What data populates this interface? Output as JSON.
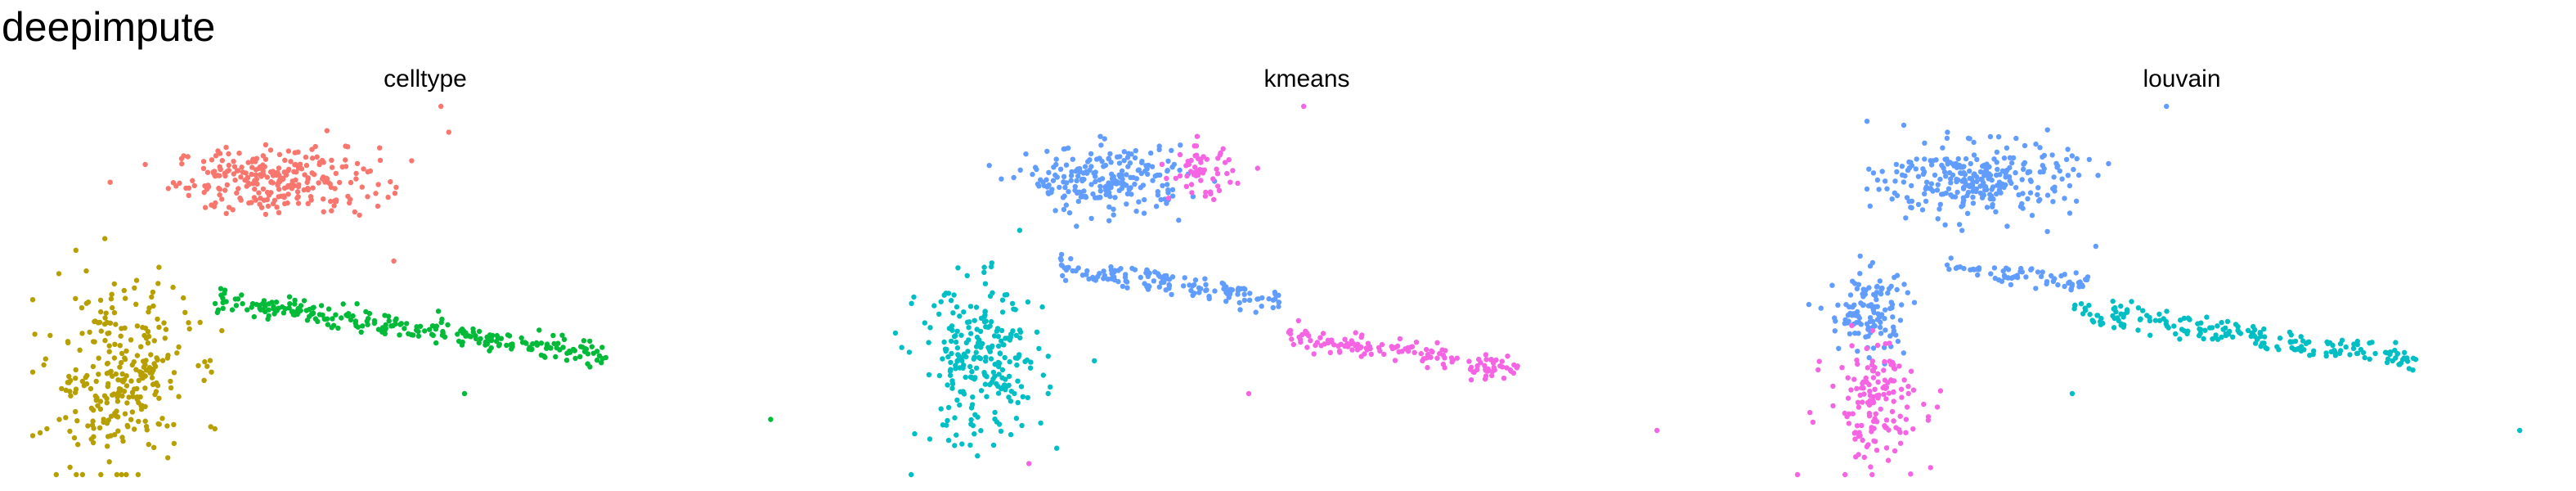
{
  "figure": {
    "title": "deepimpute"
  },
  "colors": {
    "salmon": "#F8766D",
    "olive": "#B79F00",
    "green": "#00BA38",
    "blue": "#619CFF",
    "cyan": "#00BFC4",
    "magenta": "#F564E3"
  },
  "chart_data": [
    {
      "type": "scatter",
      "title": "celltype",
      "xlabel": "",
      "ylabel": "",
      "grid": false,
      "legend": "none",
      "clusters": [
        {
          "cx": 0.31,
          "cy": 0.8,
          "rx": 0.13,
          "ry": 0.09,
          "n": 260,
          "color": "#F8766D"
        },
        {
          "cx": 0.11,
          "cy": 0.27,
          "rx": 0.09,
          "ry": 0.25,
          "n": 280,
          "color": "#B79F00"
        },
        {
          "cx": 0.48,
          "cy": 0.4,
          "rx": 0.25,
          "ry": 0.035,
          "slope": -0.6,
          "n": 260,
          "color": "#00BA38"
        }
      ],
      "outliers": [
        {
          "x": 0.52,
          "y": 1.0,
          "color": "#F8766D"
        },
        {
          "x": 0.53,
          "y": 0.93,
          "color": "#F8766D"
        },
        {
          "x": 0.46,
          "y": 0.58,
          "color": "#F8766D"
        },
        {
          "x": 0.94,
          "y": 0.15,
          "color": "#00BA38"
        },
        {
          "x": 0.55,
          "y": 0.22,
          "color": "#00BA38"
        },
        {
          "x": 0.03,
          "y": 0.0,
          "color": "#B79F00"
        }
      ]
    },
    {
      "type": "scatter",
      "title": "kmeans",
      "xlabel": "",
      "ylabel": "",
      "grid": false,
      "legend": "none",
      "clusters": [
        {
          "cx": 0.27,
          "cy": 0.8,
          "rx": 0.1,
          "ry": 0.09,
          "n": 220,
          "color": "#619CFF"
        },
        {
          "cx": 0.39,
          "cy": 0.82,
          "rx": 0.04,
          "ry": 0.07,
          "n": 60,
          "color": "#F564E3"
        },
        {
          "cx": 0.11,
          "cy": 0.3,
          "rx": 0.08,
          "ry": 0.22,
          "n": 250,
          "color": "#00BFC4"
        },
        {
          "cx": 0.35,
          "cy": 0.52,
          "rx": 0.14,
          "ry": 0.03,
          "slope": -0.6,
          "n": 140,
          "color": "#619CFF"
        },
        {
          "cx": 0.65,
          "cy": 0.33,
          "rx": 0.15,
          "ry": 0.035,
          "slope": -0.6,
          "n": 140,
          "color": "#F564E3"
        }
      ],
      "outliers": [
        {
          "x": 0.52,
          "y": 1.0,
          "color": "#F564E3"
        },
        {
          "x": 0.17,
          "y": 0.03,
          "color": "#F564E3"
        },
        {
          "x": 0.02,
          "y": 0.0,
          "color": "#00BFC4"
        },
        {
          "x": 0.97,
          "y": 0.12,
          "color": "#F564E3"
        },
        {
          "x": 0.45,
          "y": 0.22,
          "color": "#F564E3"
        }
      ]
    },
    {
      "type": "scatter",
      "title": "louvain",
      "xlabel": "",
      "ylabel": "",
      "grid": false,
      "legend": "none",
      "clusters": [
        {
          "cx": 0.28,
          "cy": 0.8,
          "rx": 0.12,
          "ry": 0.1,
          "n": 280,
          "color": "#619CFF"
        },
        {
          "cx": 0.14,
          "cy": 0.44,
          "rx": 0.05,
          "ry": 0.12,
          "n": 120,
          "color": "#619CFF"
        },
        {
          "cx": 0.15,
          "cy": 0.2,
          "rx": 0.06,
          "ry": 0.16,
          "n": 150,
          "color": "#F564E3"
        },
        {
          "cx": 0.33,
          "cy": 0.54,
          "rx": 0.09,
          "ry": 0.025,
          "slope": -0.6,
          "n": 70,
          "color": "#619CFF"
        },
        {
          "cx": 0.62,
          "cy": 0.38,
          "rx": 0.22,
          "ry": 0.035,
          "slope": -0.6,
          "n": 200,
          "color": "#00BFC4"
        }
      ],
      "outliers": [
        {
          "x": 0.52,
          "y": 1.0,
          "color": "#619CFF"
        },
        {
          "x": 0.43,
          "y": 0.62,
          "color": "#619CFF"
        },
        {
          "x": 0.05,
          "y": 0.0,
          "color": "#F564E3"
        },
        {
          "x": 0.97,
          "y": 0.12,
          "color": "#00BFC4"
        },
        {
          "x": 0.4,
          "y": 0.22,
          "color": "#00BFC4"
        }
      ]
    }
  ]
}
